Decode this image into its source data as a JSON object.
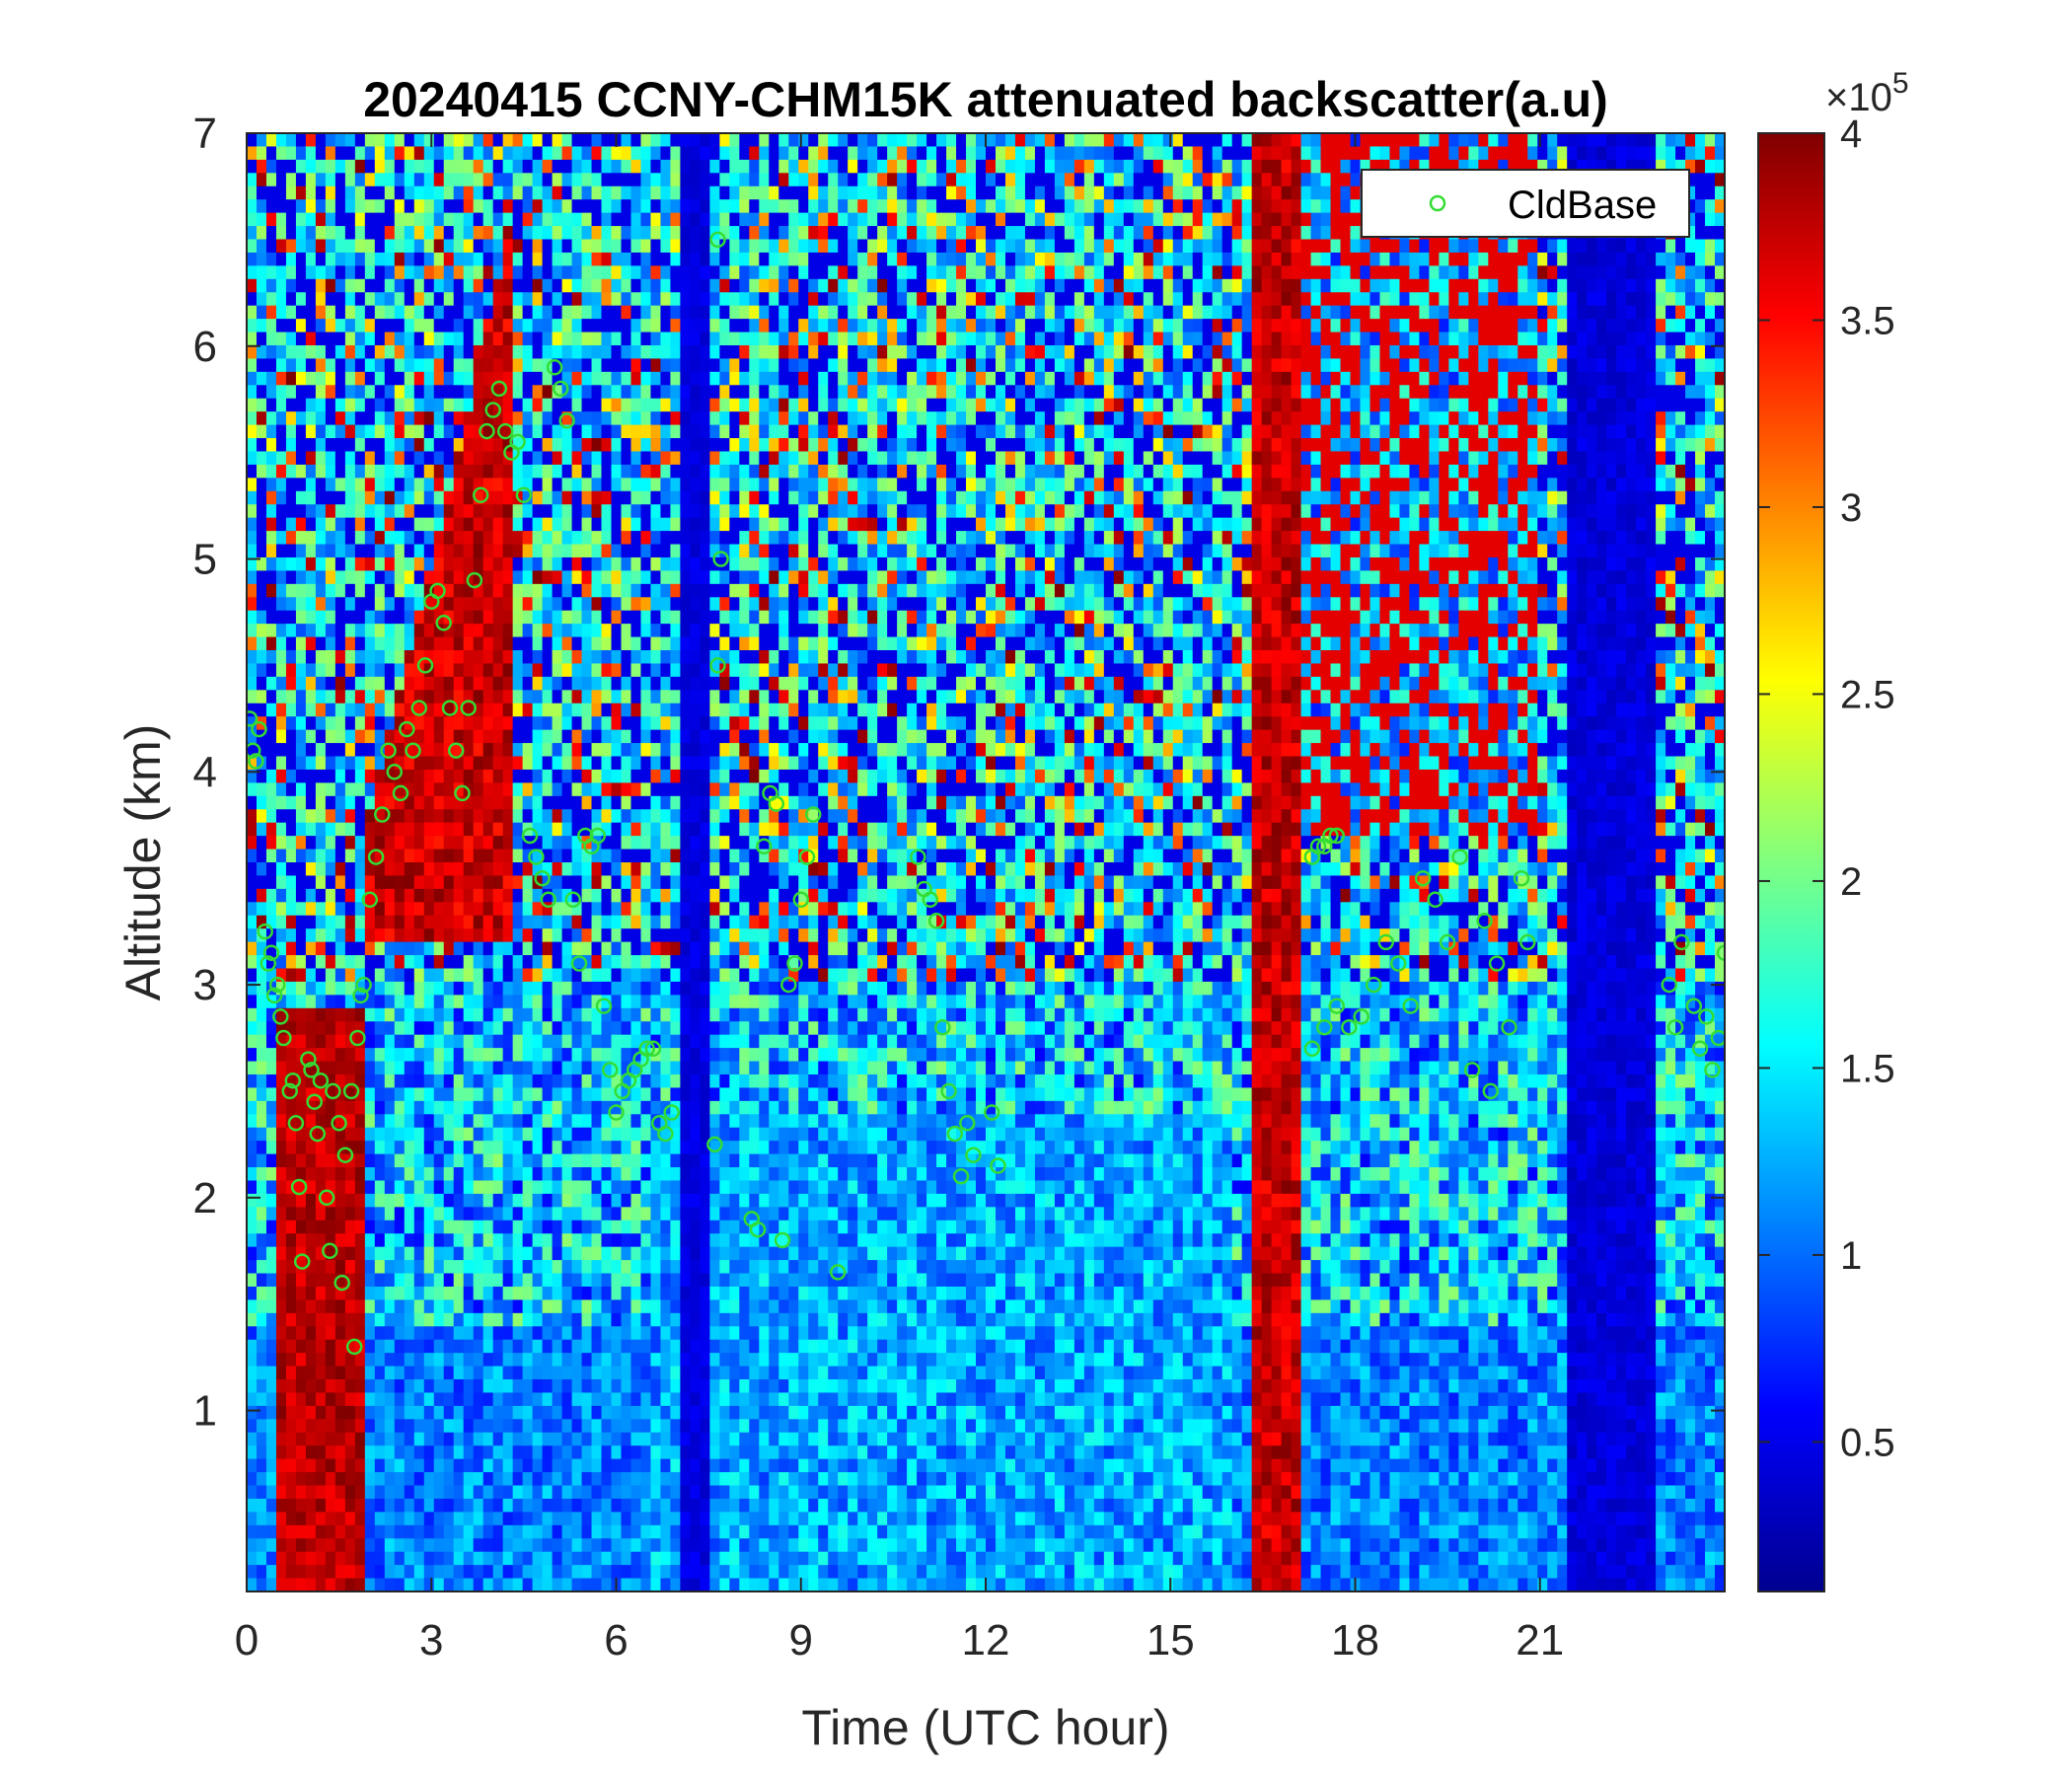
{
  "chart_data": {
    "type": "heatmap",
    "title": "20240415 CCNY-CHM15K attenuated backscatter(a.u)",
    "xlabel": "Time (UTC hour)",
    "ylabel": "Altitude (km)",
    "xlim": [
      0,
      24
    ],
    "ylim": [
      0.15,
      7
    ],
    "xticks": [
      "0",
      "3",
      "6",
      "9",
      "12",
      "15",
      "18",
      "21"
    ],
    "yticks": [
      "1",
      "2",
      "3",
      "4",
      "5",
      "6",
      "7"
    ],
    "colorbar": {
      "clim": [
        0.1,
        4
      ],
      "ticks": [
        "0.5",
        "1",
        "1.5",
        "2",
        "2.5",
        "3",
        "3.5",
        "4"
      ],
      "exponent_label": "×10",
      "exponent": "5",
      "colormap": "jet"
    },
    "legend": {
      "position": "top-right",
      "entries": [
        "CldBase"
      ]
    },
    "series": [
      {
        "name": "CldBase",
        "marker": "circle",
        "color": "#33dd33",
        "points": [
          [
            0.05,
            4.25
          ],
          [
            0.1,
            4.1
          ],
          [
            0.15,
            4.05
          ],
          [
            0.2,
            4.2
          ],
          [
            0.3,
            3.25
          ],
          [
            0.35,
            3.1
          ],
          [
            0.4,
            3.15
          ],
          [
            0.45,
            2.95
          ],
          [
            0.5,
            3.0
          ],
          [
            0.55,
            2.85
          ],
          [
            0.6,
            2.75
          ],
          [
            0.7,
            2.5
          ],
          [
            0.75,
            2.55
          ],
          [
            0.8,
            2.35
          ],
          [
            0.85,
            2.05
          ],
          [
            0.9,
            1.7
          ],
          [
            1.0,
            2.65
          ],
          [
            1.05,
            2.6
          ],
          [
            1.1,
            2.45
          ],
          [
            1.15,
            2.3
          ],
          [
            1.2,
            2.55
          ],
          [
            1.3,
            2.0
          ],
          [
            1.35,
            1.75
          ],
          [
            1.4,
            2.5
          ],
          [
            1.5,
            2.35
          ],
          [
            1.55,
            1.6
          ],
          [
            1.6,
            2.2
          ],
          [
            1.7,
            2.5
          ],
          [
            1.75,
            1.3
          ],
          [
            1.8,
            2.75
          ],
          [
            1.85,
            2.95
          ],
          [
            1.9,
            3.0
          ],
          [
            2.0,
            3.4
          ],
          [
            2.1,
            3.6
          ],
          [
            2.2,
            3.8
          ],
          [
            2.3,
            4.1
          ],
          [
            2.4,
            4.0
          ],
          [
            2.5,
            3.9
          ],
          [
            2.6,
            4.2
          ],
          [
            2.7,
            4.1
          ],
          [
            2.8,
            4.3
          ],
          [
            2.9,
            4.5
          ],
          [
            3.0,
            4.8
          ],
          [
            3.1,
            4.85
          ],
          [
            3.2,
            4.7
          ],
          [
            3.3,
            4.3
          ],
          [
            3.4,
            4.1
          ],
          [
            3.5,
            3.9
          ],
          [
            3.6,
            4.3
          ],
          [
            3.7,
            4.9
          ],
          [
            3.8,
            5.3
          ],
          [
            3.9,
            5.6
          ],
          [
            4.0,
            5.7
          ],
          [
            4.1,
            5.8
          ],
          [
            4.2,
            5.6
          ],
          [
            4.3,
            5.5
          ],
          [
            4.4,
            5.55
          ],
          [
            4.5,
            5.3
          ],
          [
            4.6,
            3.7
          ],
          [
            4.7,
            3.6
          ],
          [
            4.8,
            3.5
          ],
          [
            4.9,
            3.4
          ],
          [
            5.0,
            5.9
          ],
          [
            5.1,
            5.8
          ],
          [
            5.2,
            5.65
          ],
          [
            5.3,
            3.4
          ],
          [
            5.4,
            3.1
          ],
          [
            5.5,
            3.7
          ],
          [
            5.6,
            3.65
          ],
          [
            5.7,
            3.7
          ],
          [
            5.8,
            2.9
          ],
          [
            5.9,
            2.6
          ],
          [
            6.0,
            2.4
          ],
          [
            6.1,
            2.5
          ],
          [
            6.2,
            2.55
          ],
          [
            6.3,
            2.6
          ],
          [
            6.4,
            2.65
          ],
          [
            6.5,
            2.7
          ],
          [
            6.6,
            2.7
          ],
          [
            6.7,
            2.35
          ],
          [
            6.8,
            2.3
          ],
          [
            6.9,
            2.4
          ],
          [
            7.6,
            2.25
          ],
          [
            7.65,
            6.5
          ],
          [
            7.7,
            5.0
          ],
          [
            7.65,
            4.5
          ],
          [
            8.2,
            1.9
          ],
          [
            8.3,
            1.85
          ],
          [
            8.4,
            3.65
          ],
          [
            8.5,
            3.9
          ],
          [
            8.6,
            3.85
          ],
          [
            8.7,
            1.8
          ],
          [
            8.8,
            3.0
          ],
          [
            8.9,
            3.1
          ],
          [
            9.0,
            3.4
          ],
          [
            9.1,
            3.6
          ],
          [
            9.2,
            3.8
          ],
          [
            9.6,
            1.65
          ],
          [
            10.9,
            3.6
          ],
          [
            11.0,
            3.45
          ],
          [
            11.1,
            3.4
          ],
          [
            11.2,
            3.3
          ],
          [
            11.3,
            2.8
          ],
          [
            11.4,
            2.5
          ],
          [
            11.5,
            2.3
          ],
          [
            11.6,
            2.1
          ],
          [
            11.7,
            2.35
          ],
          [
            11.8,
            2.2
          ],
          [
            12.1,
            2.4
          ],
          [
            12.2,
            2.15
          ],
          [
            17.3,
            3.6
          ],
          [
            17.4,
            3.65
          ],
          [
            17.5,
            3.65
          ],
          [
            17.6,
            3.7
          ],
          [
            17.7,
            3.7
          ],
          [
            17.3,
            2.7
          ],
          [
            17.5,
            2.8
          ],
          [
            17.7,
            2.9
          ],
          [
            17.9,
            2.8
          ],
          [
            18.1,
            2.85
          ],
          [
            18.3,
            3.0
          ],
          [
            18.5,
            3.2
          ],
          [
            18.7,
            3.1
          ],
          [
            18.9,
            2.9
          ],
          [
            19.1,
            3.5
          ],
          [
            19.3,
            3.4
          ],
          [
            19.5,
            3.2
          ],
          [
            19.7,
            3.6
          ],
          [
            19.9,
            2.6
          ],
          [
            20.1,
            3.3
          ],
          [
            20.3,
            3.1
          ],
          [
            20.5,
            2.8
          ],
          [
            20.7,
            3.5
          ],
          [
            20.8,
            3.2
          ],
          [
            20.2,
            2.5
          ],
          [
            23.1,
            3.0
          ],
          [
            23.2,
            2.8
          ],
          [
            23.3,
            3.2
          ],
          [
            23.5,
            2.9
          ],
          [
            23.6,
            2.7
          ],
          [
            23.7,
            2.85
          ],
          [
            23.8,
            2.6
          ],
          [
            23.9,
            2.75
          ],
          [
            24.0,
            3.15
          ]
        ]
      }
    ]
  }
}
